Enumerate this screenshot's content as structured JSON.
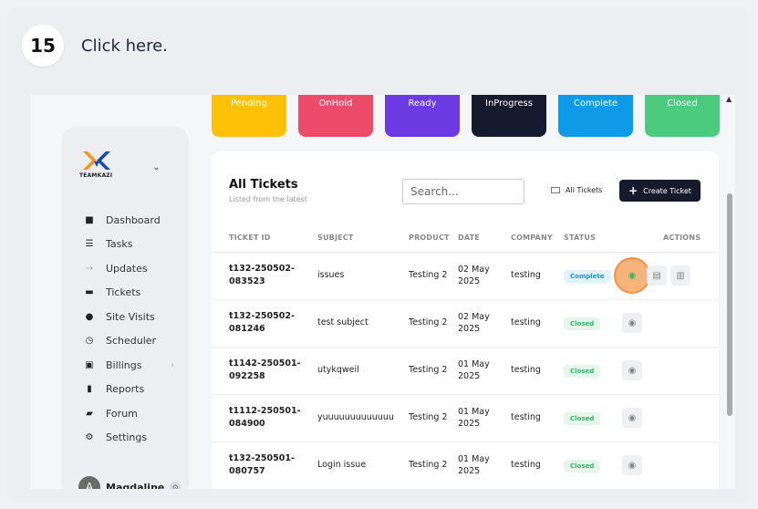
{
  "step": {
    "number": "15",
    "instruction": "Click here."
  },
  "status_cards": [
    {
      "label": "Pending",
      "color": "#ffc107"
    },
    {
      "label": "OnHold",
      "color": "#ec4b6a"
    },
    {
      "label": "Ready",
      "color": "#6c3ce2"
    },
    {
      "label": "InProgress",
      "color": "#151a2d"
    },
    {
      "label": "Complete",
      "color": "#0d9be8"
    },
    {
      "label": "Closed",
      "color": "#4ccb7e"
    }
  ],
  "sidebar": {
    "brand": "TEAMKAZI",
    "items": [
      {
        "label": "Dashboard",
        "icon": "grid-icon"
      },
      {
        "label": "Tasks",
        "icon": "list-icon"
      },
      {
        "label": "Updates",
        "icon": "arrow-icon"
      },
      {
        "label": "Tickets",
        "icon": "ticket-icon"
      },
      {
        "label": "Site Visits",
        "icon": "location-pin-icon"
      },
      {
        "label": "Scheduler",
        "icon": "calendar-clock-icon"
      },
      {
        "label": "Billings",
        "icon": "money-icon"
      },
      {
        "label": "Reports",
        "icon": "file-icon"
      },
      {
        "label": "Forum",
        "icon": "chat-icon"
      },
      {
        "label": "Settings",
        "icon": "settings-icon"
      }
    ],
    "user": {
      "name": "Magdaline",
      "initial": "A"
    }
  },
  "panel": {
    "title": "All Tickets",
    "subtitle": "Listed from the latest",
    "search_placeholder": "Search...",
    "filter_label": "All Tickets",
    "create_label": "Create Ticket",
    "columns": {
      "ticket_id": "TICKET ID",
      "subject": "SUBJECT",
      "product": "PRODUCT",
      "date": "DATE",
      "company": "COMPANY",
      "status": "STATUS",
      "actions": "ACTIONS"
    },
    "rows": [
      {
        "id_line1": "t132-250502-",
        "id_line2": "083523",
        "subject": "issues",
        "product": "Testing 2",
        "date_line1": "02 May",
        "date_line2": "2025",
        "company": "testing",
        "status": "Complete"
      },
      {
        "id_line1": "t132-250502-",
        "id_line2": "081246",
        "subject": "test subject",
        "product": "Testing 2",
        "date_line1": "02 May",
        "date_line2": "2025",
        "company": "testing",
        "status": "Closed"
      },
      {
        "id_line1": "t1142-250501-",
        "id_line2": "092258",
        "subject": "utykqweil",
        "product": "Testing 2",
        "date_line1": "01 May",
        "date_line2": "2025",
        "company": "testing",
        "status": "Closed"
      },
      {
        "id_line1": "t1112-250501-",
        "id_line2": "084900",
        "subject": "yuuuuuuuuuuuuu",
        "product": "Testing 2",
        "date_line1": "01 May",
        "date_line2": "2025",
        "company": "testing",
        "status": "Closed"
      },
      {
        "id_line1": "t132-250501-",
        "id_line2": "080757",
        "subject": "Login issue",
        "product": "Testing 2",
        "date_line1": "01 May",
        "date_line2": "2025",
        "company": "testing",
        "status": "Closed"
      }
    ]
  }
}
